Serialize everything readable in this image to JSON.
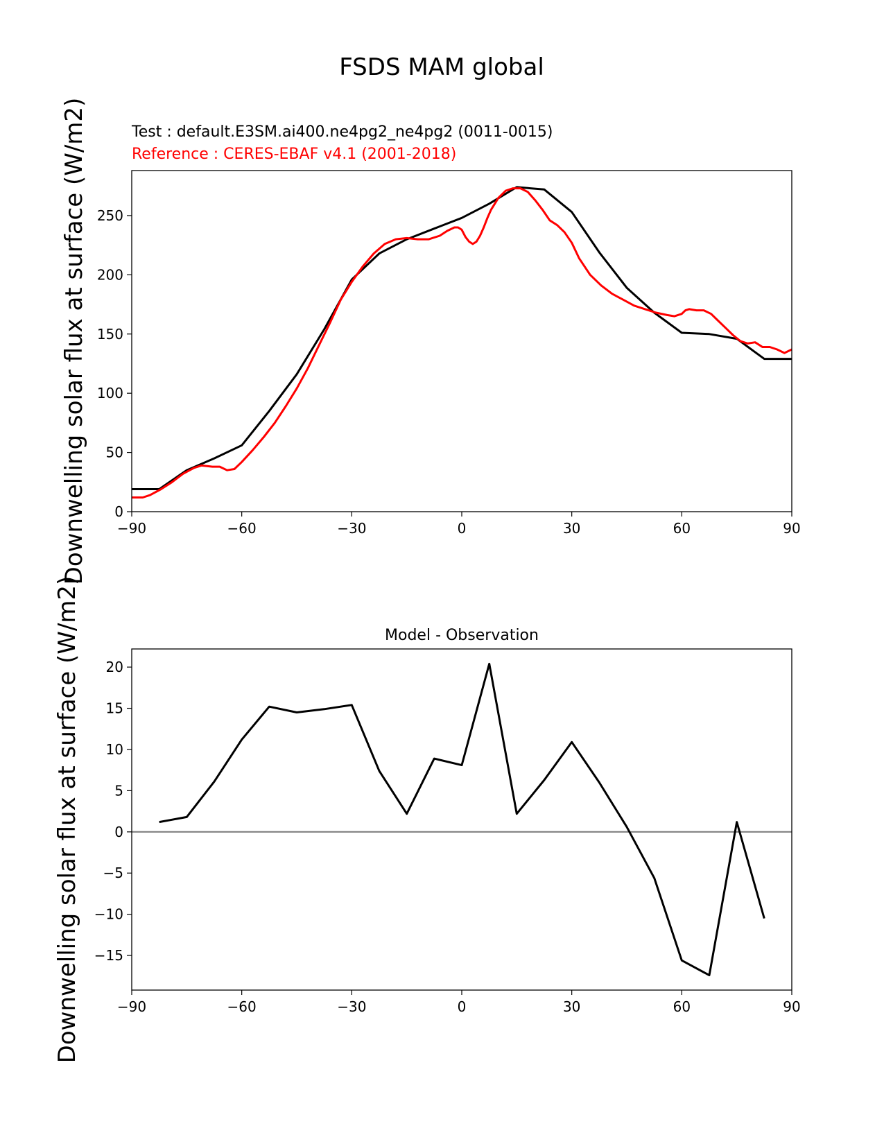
{
  "figure_title": "FSDS MAM global",
  "chart_data": [
    {
      "type": "line",
      "test_label": "Test : default.E3SM.ai400.ne4pg2_ne4pg2 (0011-0015)",
      "reference_label": "Reference : CERES-EBAF v4.1 (2001-2018)",
      "ylabel": "Downwelling solar flux at surface (W/m2)",
      "xlim": [
        -90,
        90
      ],
      "ylim": [
        0,
        288
      ],
      "xticks": [
        "−90",
        "−60",
        "−30",
        "0",
        "30",
        "60",
        "90"
      ],
      "yticks": [
        "0",
        "50",
        "100",
        "150",
        "200",
        "250"
      ],
      "colors": {
        "test": "#000000",
        "reference": "#ff0000"
      },
      "series": [
        {
          "role": "test",
          "x": [
            -90,
            -82.5,
            -75,
            -67.5,
            -60,
            -52.5,
            -45,
            -37.5,
            -30,
            -22.5,
            -15,
            -7.5,
            0,
            7.5,
            15,
            22.5,
            30,
            37.5,
            45,
            52.5,
            60,
            67.5,
            75,
            82.5,
            90
          ],
          "values": [
            19,
            19,
            35,
            45,
            56,
            85,
            116,
            154,
            196,
            218,
            230,
            239,
            248,
            260,
            274,
            272,
            253,
            219,
            189,
            168,
            151,
            150,
            146,
            129,
            129
          ]
        },
        {
          "role": "reference",
          "x": [
            -90,
            -87,
            -85,
            -82,
            -79,
            -76,
            -73,
            -71,
            -68,
            -66,
            -64,
            -62,
            -60,
            -57,
            -54,
            -51,
            -48,
            -45,
            -42,
            -39,
            -36,
            -33,
            -30,
            -27,
            -24,
            -21,
            -18,
            -15,
            -12,
            -9,
            -6,
            -4,
            -2,
            -1,
            0,
            1,
            2,
            3,
            4,
            5,
            6,
            7,
            8,
            10,
            12,
            14,
            16,
            18,
            20,
            22,
            24,
            26,
            28,
            30,
            32,
            35,
            38,
            41,
            44,
            47,
            50,
            53,
            56,
            58,
            60,
            61,
            62,
            64,
            66,
            68,
            70,
            72,
            74,
            76,
            78,
            80,
            82,
            84,
            86,
            88,
            90
          ],
          "values": [
            12,
            12,
            14,
            19,
            25,
            32,
            37,
            39,
            38,
            38,
            35,
            36,
            42,
            52,
            63,
            75,
            89,
            104,
            121,
            140,
            159,
            179,
            194,
            207,
            218,
            226,
            230,
            231,
            230,
            230,
            233,
            237,
            240,
            240,
            238,
            232,
            228,
            226,
            228,
            233,
            240,
            248,
            255,
            265,
            271,
            273,
            273,
            270,
            263,
            255,
            246,
            242,
            236,
            227,
            214,
            200,
            191,
            184,
            179,
            174,
            171,
            168,
            166,
            165,
            167,
            170,
            171,
            170,
            170,
            167,
            161,
            155,
            149,
            144,
            142,
            143,
            139,
            139,
            137,
            134,
            137
          ]
        }
      ]
    },
    {
      "type": "line",
      "title": "Model - Observation",
      "ylabel": "Downwelling solar flux at surface (W/m2)",
      "xlim": [
        -90,
        90
      ],
      "ylim": [
        -19.2,
        22.2
      ],
      "xticks": [
        "−90",
        "−60",
        "−30",
        "0",
        "30",
        "60",
        "90"
      ],
      "yticks": [
        "−15",
        "−10",
        "−5",
        "0",
        "5",
        "10",
        "15",
        "20"
      ],
      "zero_line_color": "#808080",
      "colors": {
        "difference": "#000000"
      },
      "series": [
        {
          "role": "difference",
          "x": [
            -82.5,
            -75,
            -67.5,
            -60,
            -52.5,
            -45,
            -37.5,
            -30,
            -22.5,
            -15,
            -7.5,
            0,
            7.5,
            15,
            22.5,
            30,
            37.5,
            45,
            52.5,
            60,
            67.5,
            75,
            82.5
          ],
          "values": [
            1.2,
            1.8,
            6.1,
            11.2,
            15.2,
            14.5,
            14.9,
            15.4,
            7.4,
            2.2,
            8.9,
            8.1,
            20.4,
            2.2,
            6.3,
            10.9,
            6.0,
            0.6,
            -5.6,
            -15.6,
            -17.4,
            1.2,
            -10.5
          ]
        }
      ]
    }
  ]
}
